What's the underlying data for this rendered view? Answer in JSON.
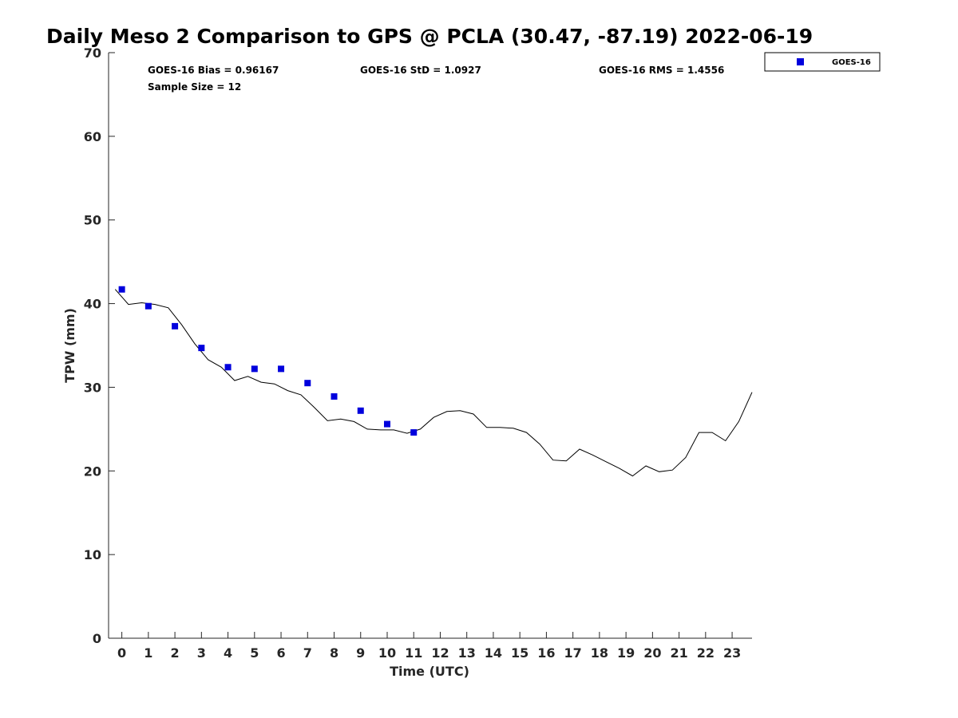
{
  "chart_data": {
    "type": "scatter",
    "title": "Daily Meso 2 Comparison to GPS @ PCLA (30.47, -87.19) 2022-06-19",
    "xlabel": "Time (UTC)",
    "ylabel": "TPW (mm)",
    "xlim": [
      -0.5,
      23.75
    ],
    "ylim": [
      0,
      70
    ],
    "x_ticks": [
      0,
      1,
      2,
      3,
      4,
      5,
      6,
      7,
      8,
      9,
      10,
      11,
      12,
      13,
      14,
      15,
      16,
      17,
      18,
      19,
      20,
      21,
      22,
      23
    ],
    "y_ticks": [
      0,
      10,
      20,
      30,
      40,
      50,
      60,
      70
    ],
    "grid": false,
    "legend_position": "top-right, outside plot",
    "stats": {
      "bias": "GOES-16 Bias = 0.96167",
      "std": "GOES-16 StD = 1.0927",
      "rms": "GOES-16 RMS = 1.4556",
      "sample_size": "Sample Size = 12"
    },
    "series": [
      {
        "name": "GOES-16",
        "marker": "square",
        "color": "#0000dd",
        "x": [
          0,
          1,
          2,
          3,
          4,
          5,
          6,
          7,
          8,
          9,
          10,
          11
        ],
        "y": [
          41.7,
          39.7,
          37.3,
          34.7,
          32.4,
          32.2,
          32.2,
          30.5,
          28.9,
          27.2,
          25.6,
          24.6
        ]
      },
      {
        "marker": "line",
        "color": "#000000",
        "x": [
          -0.25,
          0.25,
          0.75,
          1.25,
          1.75,
          2.25,
          2.75,
          3.25,
          3.75,
          4.25,
          4.75,
          5.25,
          5.75,
          6.25,
          6.75,
          7.25,
          7.75,
          8.25,
          8.75,
          9.25,
          9.75,
          10.25,
          10.75,
          11.25,
          11.75,
          12.25,
          12.75,
          13.25,
          13.75,
          14.25,
          14.75,
          15.25,
          15.75,
          16.25,
          16.75,
          17.25,
          17.75,
          18.25,
          18.75,
          19.25,
          19.75,
          20.25,
          20.75,
          21.25,
          21.75,
          22.25,
          22.75,
          23.25,
          23.75
        ],
        "y": [
          41.7,
          39.9,
          40.1,
          39.9,
          39.5,
          37.5,
          35.2,
          33.3,
          32.4,
          30.8,
          31.3,
          30.6,
          30.4,
          29.6,
          29.1,
          27.6,
          26.0,
          26.2,
          25.9,
          25.0,
          24.9,
          24.9,
          24.5,
          25.0,
          26.4,
          27.1,
          27.2,
          26.8,
          25.2,
          25.2,
          25.1,
          24.6,
          23.2,
          21.3,
          21.2,
          22.6,
          21.9,
          21.1,
          20.3,
          19.4,
          20.6,
          19.9,
          20.1,
          21.6,
          24.6,
          24.6,
          23.6,
          25.9,
          29.4
        ]
      }
    ]
  }
}
